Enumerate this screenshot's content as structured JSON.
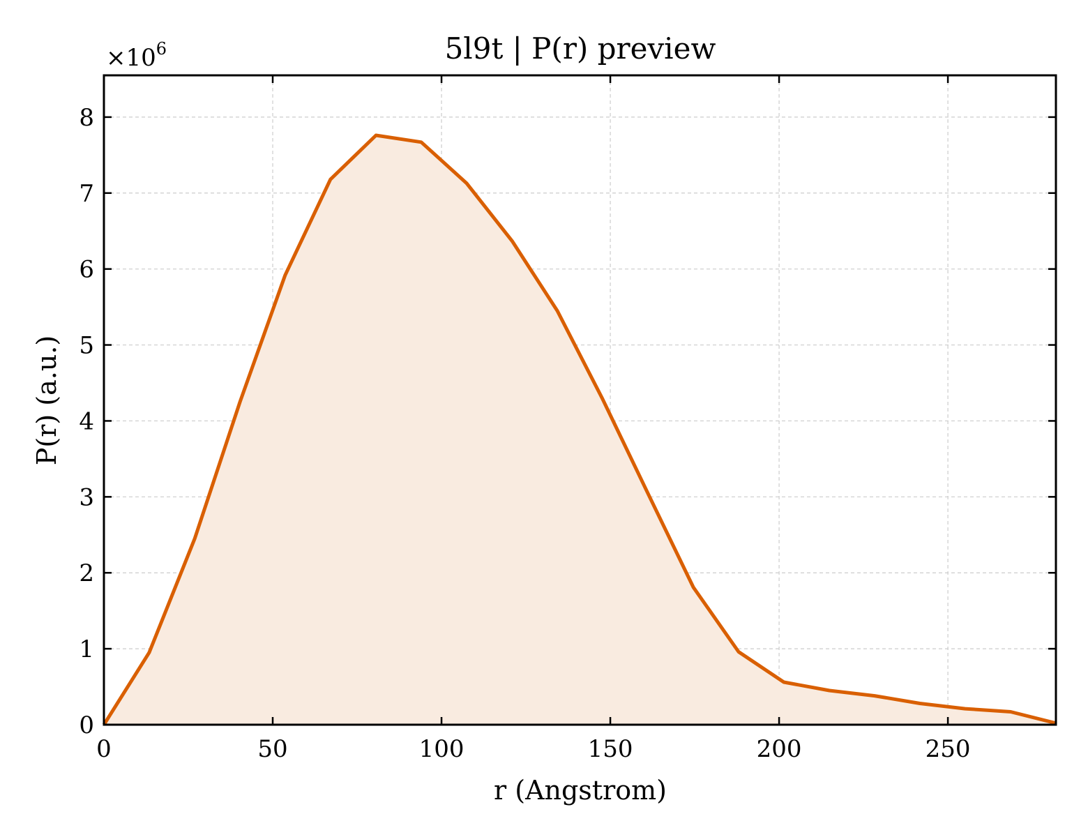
{
  "chart_data": {
    "type": "area",
    "title": "5l9t | P(r) preview",
    "xlabel": "r (Angstrom)",
    "ylabel": "P(r) (a.u.)",
    "y_multiplier": "×10",
    "y_multiplier_exponent": "6",
    "xlim": [
      0,
      282
    ],
    "ylim": [
      0,
      8.55
    ],
    "x_ticks": [
      0,
      50,
      100,
      150,
      200,
      250
    ],
    "y_ticks": [
      0,
      1,
      2,
      3,
      4,
      5,
      6,
      7,
      8
    ],
    "grid": true,
    "series": [
      {
        "x": [
          0,
          13.4,
          26.9,
          40.3,
          53.7,
          67.1,
          80.6,
          94.0,
          107.4,
          120.9,
          134.3,
          147.7,
          161.1,
          174.6,
          188.0,
          201.4,
          214.9,
          228.3,
          241.7,
          255.1,
          268.6,
          282.0
        ],
        "y": [
          0,
          0.95,
          2.45,
          4.25,
          5.92,
          7.18,
          7.76,
          7.67,
          7.13,
          6.37,
          5.45,
          4.29,
          3.05,
          1.81,
          0.96,
          0.56,
          0.45,
          0.38,
          0.28,
          0.21,
          0.17,
          0.02
        ]
      }
    ],
    "colors": {
      "line": "#d95f02",
      "fill": "#f9ebe0"
    }
  }
}
